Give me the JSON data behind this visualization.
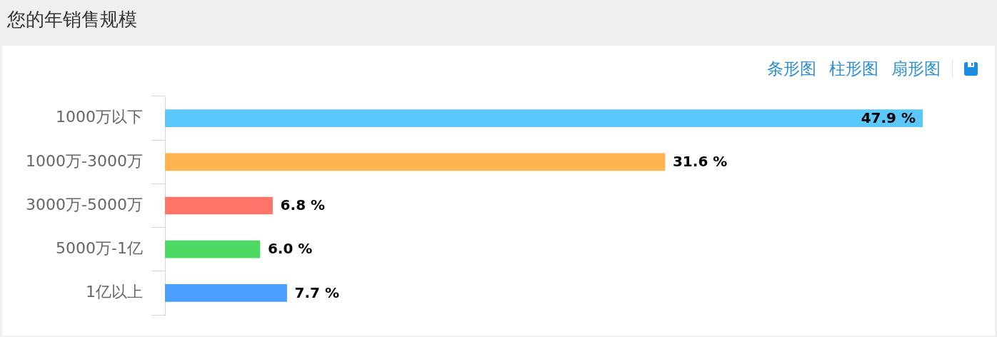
{
  "chart_data": {
    "type": "bar",
    "title": "您的年销售规模",
    "orientation": "horizontal",
    "categories": [
      "1000万以下",
      "1000万-3000万",
      "3000万-5000万",
      "5000万-1亿",
      "1亿以上"
    ],
    "values": [
      47.9,
      31.6,
      6.8,
      6.0,
      7.7
    ],
    "colors": [
      "#5ac8fa",
      "#ffb450",
      "#ff7468",
      "#4cd964",
      "#4a9ffe"
    ],
    "value_labels": [
      "47.9 %",
      "31.6 %",
      "6.8 %",
      "6.0 %",
      "7.7 %"
    ],
    "tick_labels": "y",
    "annotations": [
      "条形图",
      "柱形图",
      "扇形图"
    ]
  }
}
